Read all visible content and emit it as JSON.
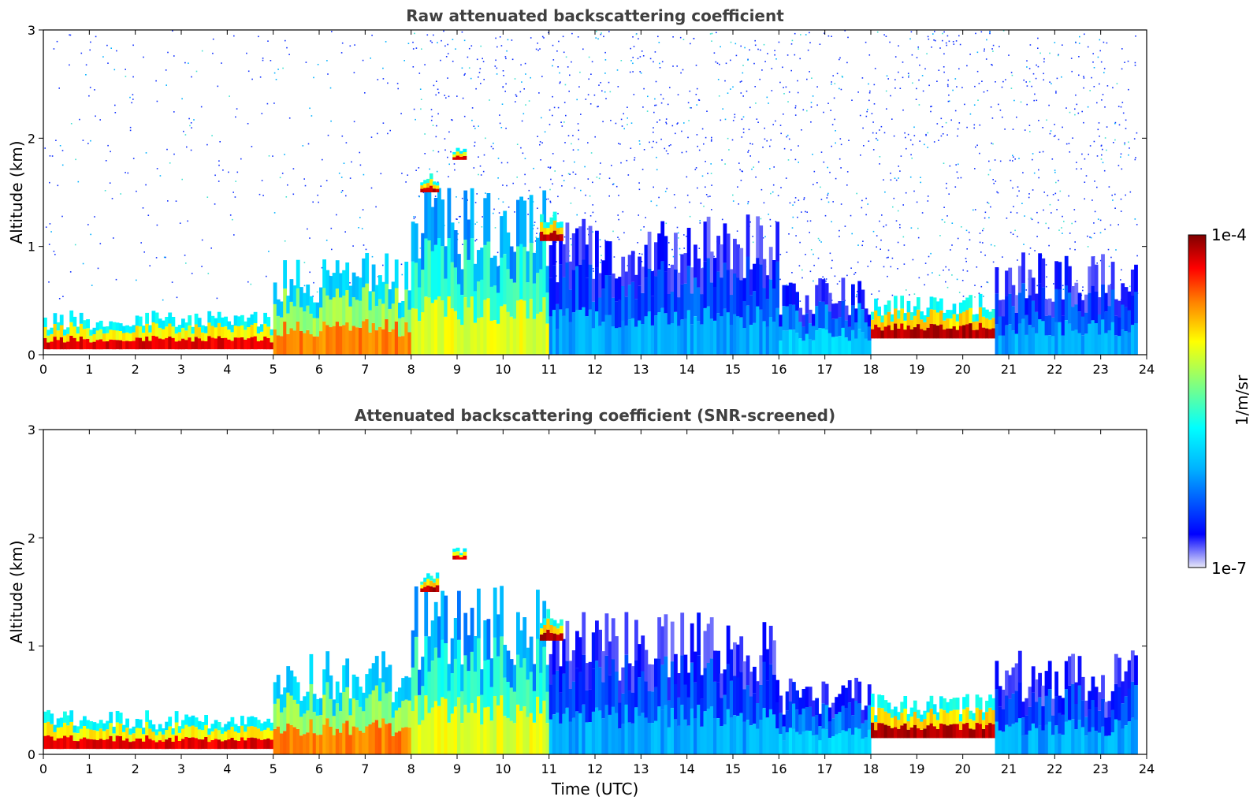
{
  "chart_data": [
    {
      "type": "heatmap",
      "title": "Raw attenuated backscattering coefficient",
      "xlabel": "",
      "ylabel": "Altitude (km)",
      "xlim": [
        0,
        24
      ],
      "ylim": [
        0,
        3
      ],
      "x_ticks": [
        "0",
        "1",
        "2",
        "3",
        "4",
        "5",
        "6",
        "7",
        "8",
        "9",
        "10",
        "11",
        "12",
        "13",
        "14",
        "15",
        "16",
        "17",
        "18",
        "19",
        "20",
        "21",
        "22",
        "23",
        "24"
      ],
      "y_ticks": [
        "0",
        "1",
        "2",
        "3"
      ],
      "layers": [
        {
          "t0": 0,
          "t1": 5,
          "base_km": 0.05,
          "top_km": 0.35,
          "level": 0.9
        },
        {
          "t0": 5,
          "t1": 8,
          "base_km": 0.0,
          "top_km": 0.8,
          "level": 0.75
        },
        {
          "t0": 8,
          "t1": 11,
          "base_km": 0.0,
          "top_km": 1.3,
          "level": 0.6
        },
        {
          "t0": 11,
          "t1": 16,
          "base_km": 0.0,
          "top_km": 1.1,
          "level": 0.25
        },
        {
          "t0": 16,
          "t1": 18,
          "base_km": 0.0,
          "top_km": 0.6,
          "level": 0.3
        },
        {
          "t0": 18,
          "t1": 20.7,
          "base_km": 0.15,
          "top_km": 0.5,
          "level": 0.95
        },
        {
          "t0": 20.7,
          "t1": 23.8,
          "base_km": 0.0,
          "top_km": 0.8,
          "level": 0.25
        },
        {
          "t0": 8.2,
          "t1": 8.6,
          "base_km": 1.5,
          "top_km": 1.65,
          "level": 0.95
        },
        {
          "t0": 8.9,
          "t1": 9.2,
          "base_km": 1.8,
          "top_km": 1.9,
          "level": 0.9
        },
        {
          "t0": 10.8,
          "t1": 11.3,
          "base_km": 1.05,
          "top_km": 1.3,
          "level": 0.95
        }
      ],
      "noise_background": true
    },
    {
      "type": "heatmap",
      "title": "Attenuated backscattering coefficient (SNR-screened)",
      "xlabel": "Time (UTC)",
      "ylabel": "Altitude (km)",
      "xlim": [
        0,
        24
      ],
      "ylim": [
        0,
        3
      ],
      "x_ticks": [
        "0",
        "1",
        "2",
        "3",
        "4",
        "5",
        "6",
        "7",
        "8",
        "9",
        "10",
        "11",
        "12",
        "13",
        "14",
        "15",
        "16",
        "17",
        "18",
        "19",
        "20",
        "21",
        "22",
        "23",
        "24"
      ],
      "y_ticks": [
        "0",
        "1",
        "2",
        "3"
      ],
      "layers": [
        {
          "t0": 0,
          "t1": 5,
          "base_km": 0.05,
          "top_km": 0.35,
          "level": 0.9
        },
        {
          "t0": 5,
          "t1": 8,
          "base_km": 0.0,
          "top_km": 0.8,
          "level": 0.75
        },
        {
          "t0": 8,
          "t1": 11,
          "base_km": 0.0,
          "top_km": 1.3,
          "level": 0.6
        },
        {
          "t0": 11,
          "t1": 16,
          "base_km": 0.0,
          "top_km": 1.1,
          "level": 0.25
        },
        {
          "t0": 16,
          "t1": 18,
          "base_km": 0.0,
          "top_km": 0.6,
          "level": 0.3
        },
        {
          "t0": 18,
          "t1": 20.7,
          "base_km": 0.15,
          "top_km": 0.5,
          "level": 0.95
        },
        {
          "t0": 20.7,
          "t1": 23.8,
          "base_km": 0.0,
          "top_km": 0.8,
          "level": 0.25
        },
        {
          "t0": 8.2,
          "t1": 8.6,
          "base_km": 1.5,
          "top_km": 1.65,
          "level": 0.95
        },
        {
          "t0": 8.9,
          "t1": 9.2,
          "base_km": 1.8,
          "top_km": 1.9,
          "level": 0.9
        },
        {
          "t0": 10.8,
          "t1": 11.3,
          "base_km": 1.05,
          "top_km": 1.3,
          "level": 0.95
        }
      ],
      "noise_background": false
    }
  ],
  "colorbar": {
    "label": "1/m/sr",
    "max_label": "1e-4",
    "min_label": "1e-7",
    "colormap": [
      "#e8e8f8",
      "#0000ff",
      "#00b4ff",
      "#00ffff",
      "#80ff80",
      "#ffff00",
      "#ff8000",
      "#ff0000",
      "#800000"
    ]
  }
}
